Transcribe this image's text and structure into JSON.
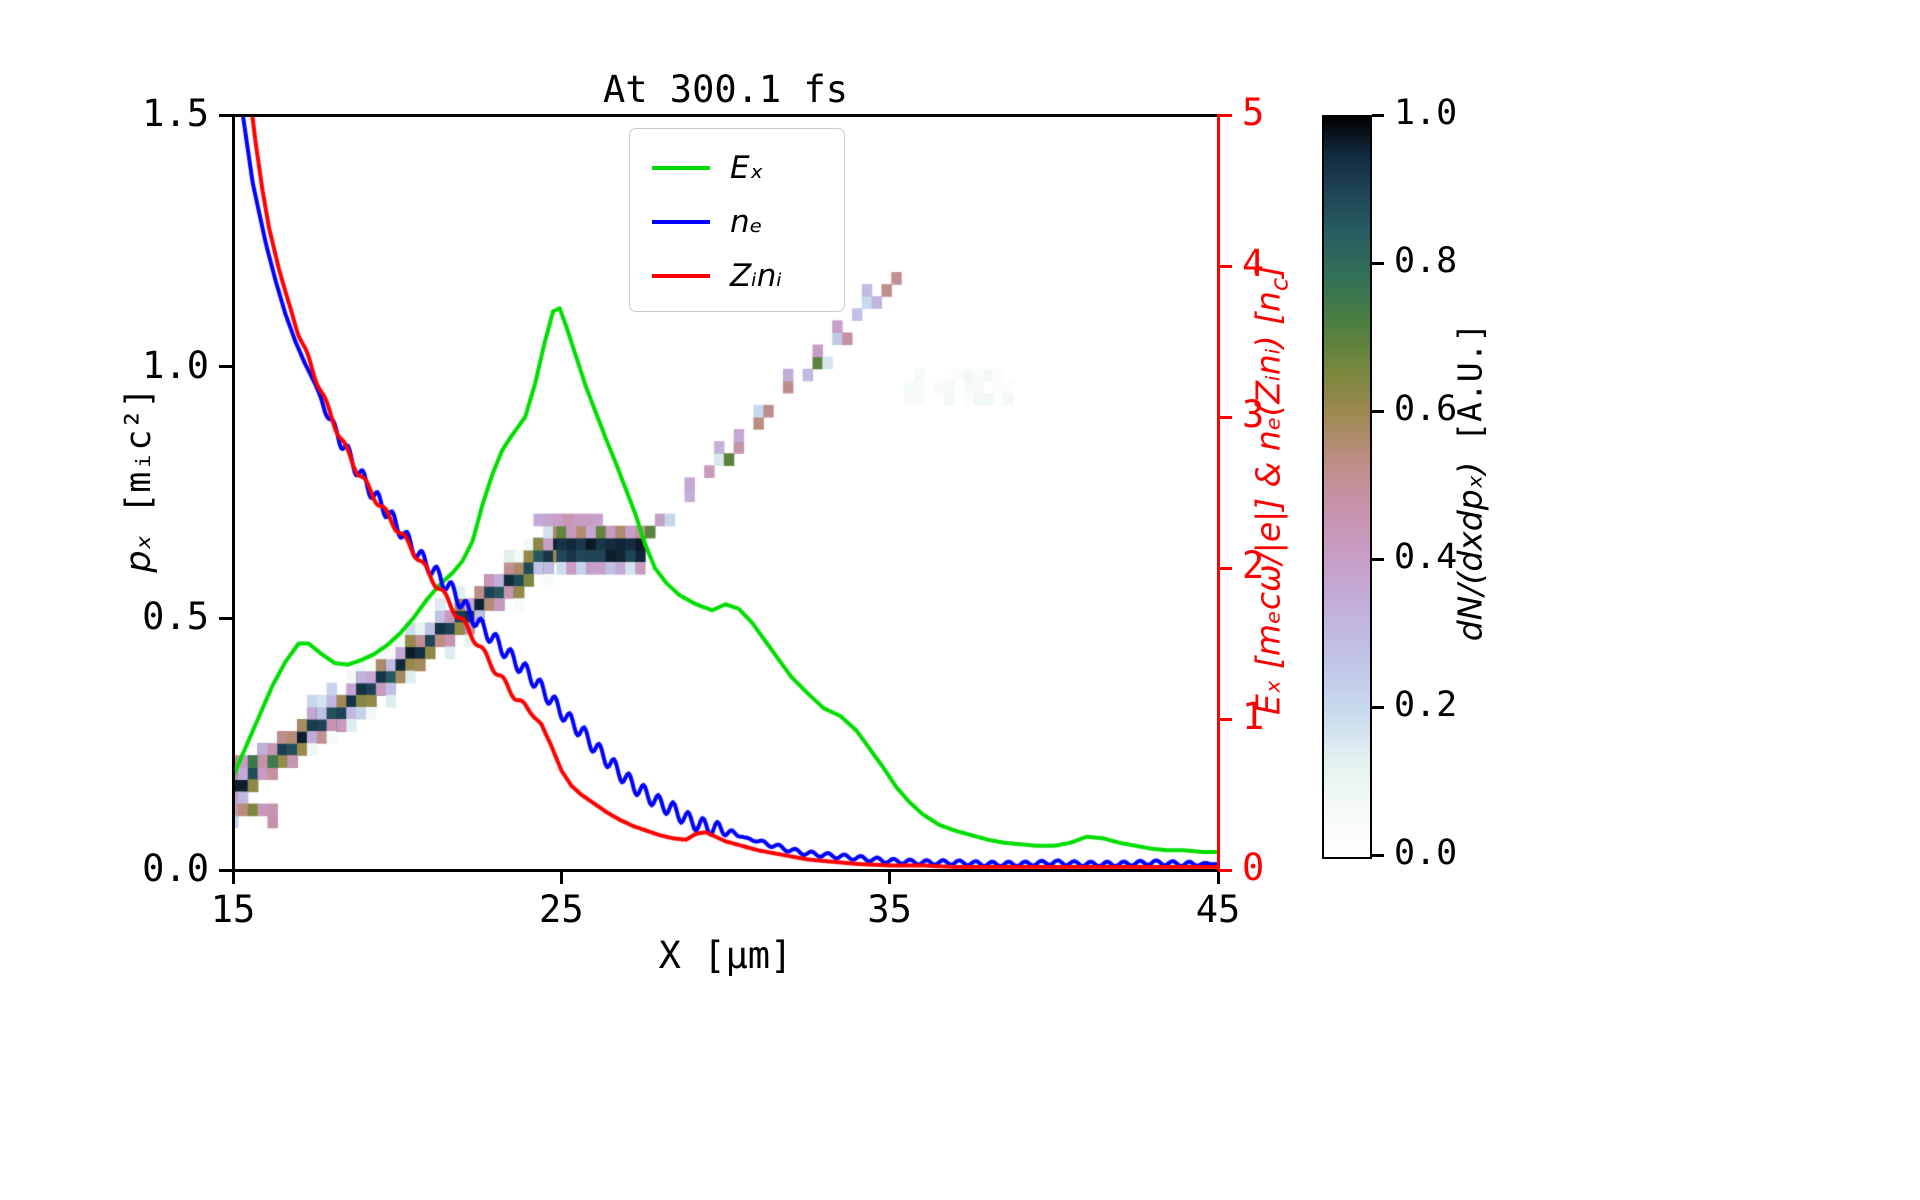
{
  "figure": {
    "title": "At 300.1 fs",
    "background": "#ffffff"
  },
  "axes": {
    "x": {
      "label": "X [μm]",
      "min": 15,
      "max": 45,
      "ticks": [
        "15",
        "25",
        "35",
        "45"
      ]
    },
    "y_left": {
      "label_var": "pₓ",
      "label_unit": " [mᵢc²]",
      "min": 0,
      "max": 1.5,
      "ticks": [
        "0.0",
        "0.5",
        "1.0",
        "1.5"
      ]
    },
    "y_right": {
      "label_pre": "Eₓ [mₑcω/|e|] & nₑ(Zᵢnᵢ) [n",
      "label_sub": "c",
      "label_post": "]",
      "min": 0,
      "max": 5,
      "ticks": [
        "0",
        "1",
        "2",
        "3",
        "4",
        "5"
      ],
      "color": "#ff0000"
    }
  },
  "legend": {
    "items": [
      {
        "label": "Eₓ",
        "color": "#00dd00"
      },
      {
        "label": "nₑ",
        "color": "#0000ff"
      },
      {
        "label": "Zᵢnᵢ",
        "color": "#ff0000"
      }
    ]
  },
  "colorbar": {
    "label_math": "dN/(dxdpₓ)",
    "label_unit": " [A.U.]",
    "min": 0,
    "max": 1,
    "ticks": [
      "0.0",
      "0.2",
      "0.4",
      "0.6",
      "0.8",
      "1.0"
    ]
  },
  "chart_data": {
    "type": [
      "heatmap",
      "line"
    ],
    "title": "At 300.1 fs",
    "xlabel": "X [μm]",
    "xlim": [
      15,
      45
    ],
    "ylabel_left": "pₓ [mᵢc²]",
    "ylim_left": [
      0,
      1.5
    ],
    "ylabel_right": "Eₓ [mₑcω/|e|] & nₑ(Zᵢnᵢ) [n_c]",
    "ylim_right": [
      0,
      5
    ],
    "legend_position": "upper center",
    "series": [
      {
        "name": "Ex",
        "axis": "right",
        "color": "#00dd00",
        "points": [
          [
            15,
            0.62
          ],
          [
            15.4,
            0.82
          ],
          [
            15.8,
            1.02
          ],
          [
            16.2,
            1.22
          ],
          [
            16.6,
            1.38
          ],
          [
            17,
            1.5
          ],
          [
            17.3,
            1.5
          ],
          [
            17.7,
            1.43
          ],
          [
            18.1,
            1.37
          ],
          [
            18.5,
            1.36
          ],
          [
            18.9,
            1.39
          ],
          [
            19.3,
            1.43
          ],
          [
            19.7,
            1.49
          ],
          [
            20.1,
            1.57
          ],
          [
            20.5,
            1.67
          ],
          [
            20.9,
            1.79
          ],
          [
            21.3,
            1.89
          ],
          [
            21.7,
            1.97
          ],
          [
            22,
            2.05
          ],
          [
            22.3,
            2.18
          ],
          [
            22.6,
            2.42
          ],
          [
            22.9,
            2.62
          ],
          [
            23.2,
            2.78
          ],
          [
            23.5,
            2.88
          ],
          [
            23.9,
            3.0
          ],
          [
            24.2,
            3.22
          ],
          [
            24.5,
            3.5
          ],
          [
            24.75,
            3.7
          ],
          [
            24.95,
            3.72
          ],
          [
            25.15,
            3.6
          ],
          [
            25.45,
            3.4
          ],
          [
            25.75,
            3.2
          ],
          [
            26.05,
            3.03
          ],
          [
            26.35,
            2.86
          ],
          [
            26.65,
            2.7
          ],
          [
            26.95,
            2.53
          ],
          [
            27.25,
            2.36
          ],
          [
            27.55,
            2.16
          ],
          [
            27.85,
            2.0
          ],
          [
            28.2,
            1.9
          ],
          [
            28.6,
            1.82
          ],
          [
            29.1,
            1.76
          ],
          [
            29.6,
            1.72
          ],
          [
            30,
            1.76
          ],
          [
            30.4,
            1.73
          ],
          [
            30.8,
            1.64
          ],
          [
            31.2,
            1.52
          ],
          [
            31.6,
            1.4
          ],
          [
            32,
            1.28
          ],
          [
            32.5,
            1.17
          ],
          [
            33,
            1.07
          ],
          [
            33.5,
            1.02
          ],
          [
            34,
            0.92
          ],
          [
            34.4,
            0.8
          ],
          [
            34.8,
            0.68
          ],
          [
            35.2,
            0.55
          ],
          [
            35.6,
            0.45
          ],
          [
            36,
            0.37
          ],
          [
            36.5,
            0.3
          ],
          [
            37,
            0.26
          ],
          [
            37.5,
            0.23
          ],
          [
            38,
            0.2
          ],
          [
            38.5,
            0.18
          ],
          [
            39,
            0.17
          ],
          [
            39.5,
            0.16
          ],
          [
            40,
            0.16
          ],
          [
            40.5,
            0.18
          ],
          [
            41,
            0.22
          ],
          [
            41.5,
            0.21
          ],
          [
            42,
            0.18
          ],
          [
            42.5,
            0.16
          ],
          [
            43,
            0.14
          ],
          [
            43.5,
            0.13
          ],
          [
            44,
            0.13
          ],
          [
            44.5,
            0.12
          ],
          [
            45,
            0.12
          ]
        ],
        "wiggles": []
      },
      {
        "name": "ne",
        "axis": "right",
        "color": "#0000ff",
        "points": [
          [
            15.2,
            5.15
          ],
          [
            15.4,
            4.85
          ],
          [
            15.6,
            4.55
          ],
          [
            15.8,
            4.35
          ],
          [
            16,
            4.15
          ],
          [
            16.3,
            3.9
          ],
          [
            16.6,
            3.68
          ],
          [
            16.9,
            3.5
          ],
          [
            17.2,
            3.35
          ],
          [
            17.5,
            3.22
          ],
          [
            17.8,
            3.05
          ],
          [
            18.1,
            2.92
          ],
          [
            18.4,
            2.8
          ],
          [
            18.7,
            2.68
          ],
          [
            19,
            2.58
          ],
          [
            19.3,
            2.48
          ],
          [
            19.6,
            2.4
          ],
          [
            20,
            2.28
          ],
          [
            20.4,
            2.16
          ],
          [
            20.8,
            2.05
          ],
          [
            21.2,
            1.96
          ],
          [
            21.6,
            1.87
          ],
          [
            22,
            1.76
          ],
          [
            22.4,
            1.65
          ],
          [
            22.8,
            1.56
          ],
          [
            23.2,
            1.47
          ],
          [
            23.6,
            1.38
          ],
          [
            24,
            1.3
          ],
          [
            24.4,
            1.2
          ],
          [
            24.8,
            1.1
          ],
          [
            25.2,
            1.0
          ],
          [
            25.6,
            0.92
          ],
          [
            26,
            0.82
          ],
          [
            26.4,
            0.73
          ],
          [
            26.8,
            0.64
          ],
          [
            27.2,
            0.56
          ],
          [
            27.6,
            0.5
          ],
          [
            28,
            0.44
          ],
          [
            28.4,
            0.4
          ],
          [
            28.8,
            0.34
          ],
          [
            29.2,
            0.3
          ],
          [
            29.6,
            0.28
          ],
          [
            30,
            0.26
          ],
          [
            30.5,
            0.22
          ],
          [
            31,
            0.19
          ],
          [
            31.5,
            0.16
          ],
          [
            32,
            0.13
          ],
          [
            32.5,
            0.11
          ],
          [
            33,
            0.1
          ],
          [
            33.5,
            0.09
          ],
          [
            34,
            0.08
          ],
          [
            34.5,
            0.07
          ],
          [
            35,
            0.06
          ],
          [
            36,
            0.05
          ],
          [
            37,
            0.05
          ],
          [
            38,
            0.04
          ],
          [
            39,
            0.04
          ],
          [
            40,
            0.05
          ],
          [
            41,
            0.04
          ],
          [
            42,
            0.04
          ],
          [
            43,
            0.05
          ],
          [
            44,
            0.04
          ],
          [
            45,
            0.04
          ]
        ],
        "wiggles": [
          {
            "amp": 0.05,
            "wl": 0.45,
            "x0": 17.5,
            "x1": 30.5
          },
          {
            "amp": 0.015,
            "wl": 0.5,
            "x0": 30.5,
            "x1": 45
          }
        ]
      },
      {
        "name": "Zini",
        "axis": "right",
        "color": "#ff0000",
        "points": [
          [
            15.5,
            5.15
          ],
          [
            15.7,
            4.8
          ],
          [
            15.9,
            4.5
          ],
          [
            16.1,
            4.25
          ],
          [
            16.4,
            3.98
          ],
          [
            16.7,
            3.75
          ],
          [
            17,
            3.55
          ],
          [
            17.3,
            3.38
          ],
          [
            17.6,
            3.22
          ],
          [
            17.9,
            3.05
          ],
          [
            18.2,
            2.9
          ],
          [
            18.5,
            2.76
          ],
          [
            18.8,
            2.64
          ],
          [
            19.1,
            2.54
          ],
          [
            19.4,
            2.44
          ],
          [
            19.8,
            2.32
          ],
          [
            20.2,
            2.2
          ],
          [
            20.6,
            2.08
          ],
          [
            21,
            1.95
          ],
          [
            21.4,
            1.83
          ],
          [
            21.8,
            1.7
          ],
          [
            22.2,
            1.58
          ],
          [
            22.6,
            1.45
          ],
          [
            23,
            1.32
          ],
          [
            23.4,
            1.2
          ],
          [
            23.8,
            1.1
          ],
          [
            24.1,
            1.04
          ],
          [
            24.4,
            0.96
          ],
          [
            24.7,
            0.82
          ],
          [
            25,
            0.66
          ],
          [
            25.3,
            0.56
          ],
          [
            25.6,
            0.5
          ],
          [
            26,
            0.44
          ],
          [
            26.4,
            0.38
          ],
          [
            26.8,
            0.33
          ],
          [
            27.2,
            0.29
          ],
          [
            27.6,
            0.26
          ],
          [
            28,
            0.23
          ],
          [
            28.4,
            0.21
          ],
          [
            28.8,
            0.2
          ],
          [
            29.1,
            0.24
          ],
          [
            29.4,
            0.25
          ],
          [
            29.7,
            0.22
          ],
          [
            30,
            0.19
          ],
          [
            30.5,
            0.16
          ],
          [
            31,
            0.13
          ],
          [
            31.5,
            0.11
          ],
          [
            32,
            0.09
          ],
          [
            32.5,
            0.07
          ],
          [
            33,
            0.06
          ],
          [
            33.5,
            0.05
          ],
          [
            34,
            0.04
          ],
          [
            35,
            0.03
          ],
          [
            36,
            0.03
          ],
          [
            37,
            0.02
          ],
          [
            38,
            0.02
          ],
          [
            39,
            0.02
          ],
          [
            40,
            0.02
          ],
          [
            41,
            0.02
          ],
          [
            42,
            0.02
          ],
          [
            43,
            0.02
          ],
          [
            44,
            0.02
          ],
          [
            45,
            0.02
          ]
        ],
        "wiggles": [
          {
            "amp": 0.025,
            "wl": 0.6,
            "x0": 16.5,
            "x1": 24.5
          }
        ]
      }
    ],
    "phase_space": {
      "name": "dN/(dxdpx)",
      "units": "A.U.",
      "cell": {
        "dx": 0.3,
        "dp": 0.024
      },
      "band": {
        "x0": 15.0,
        "x1": 25.0,
        "p0": 0.16,
        "p1": 0.65,
        "core_v": 0.97
      },
      "head": {
        "x0": 15.0,
        "x1": 16.3,
        "p": 0.165
      },
      "plateau": {
        "x0": 25.0,
        "x1": 27.7,
        "p": 0.645,
        "core_v": 0.97
      },
      "pink_fringe": {
        "x0": 24.3,
        "x1": 26.3,
        "p": 0.7,
        "v": 0.33
      },
      "trail": {
        "x0": 27.7,
        "x1": 35.2,
        "p0": 0.66,
        "p1": 1.17,
        "v_min": 0.15,
        "v_max": 0.55
      },
      "smudge": {
        "x0": 35.6,
        "x1": 38.6,
        "p": 0.95,
        "v": 0.06
      },
      "colormap_stops": [
        [
          0,
          "#ffffff"
        ],
        [
          0.06,
          "#f6fbf7"
        ],
        [
          0.13,
          "#e2f1ef"
        ],
        [
          0.2,
          "#c8d9ee"
        ],
        [
          0.27,
          "#bfc3e6"
        ],
        [
          0.34,
          "#c2aeda"
        ],
        [
          0.41,
          "#c89cc4"
        ],
        [
          0.48,
          "#c792a8"
        ],
        [
          0.54,
          "#bb8d82"
        ],
        [
          0.6,
          "#9d894f"
        ],
        [
          0.66,
          "#76873d"
        ],
        [
          0.72,
          "#4d7f3f"
        ],
        [
          0.78,
          "#347257"
        ],
        [
          0.84,
          "#285f62"
        ],
        [
          0.9,
          "#1e4355"
        ],
        [
          0.95,
          "#122a3e"
        ],
        [
          1,
          "#000000"
        ]
      ]
    }
  }
}
